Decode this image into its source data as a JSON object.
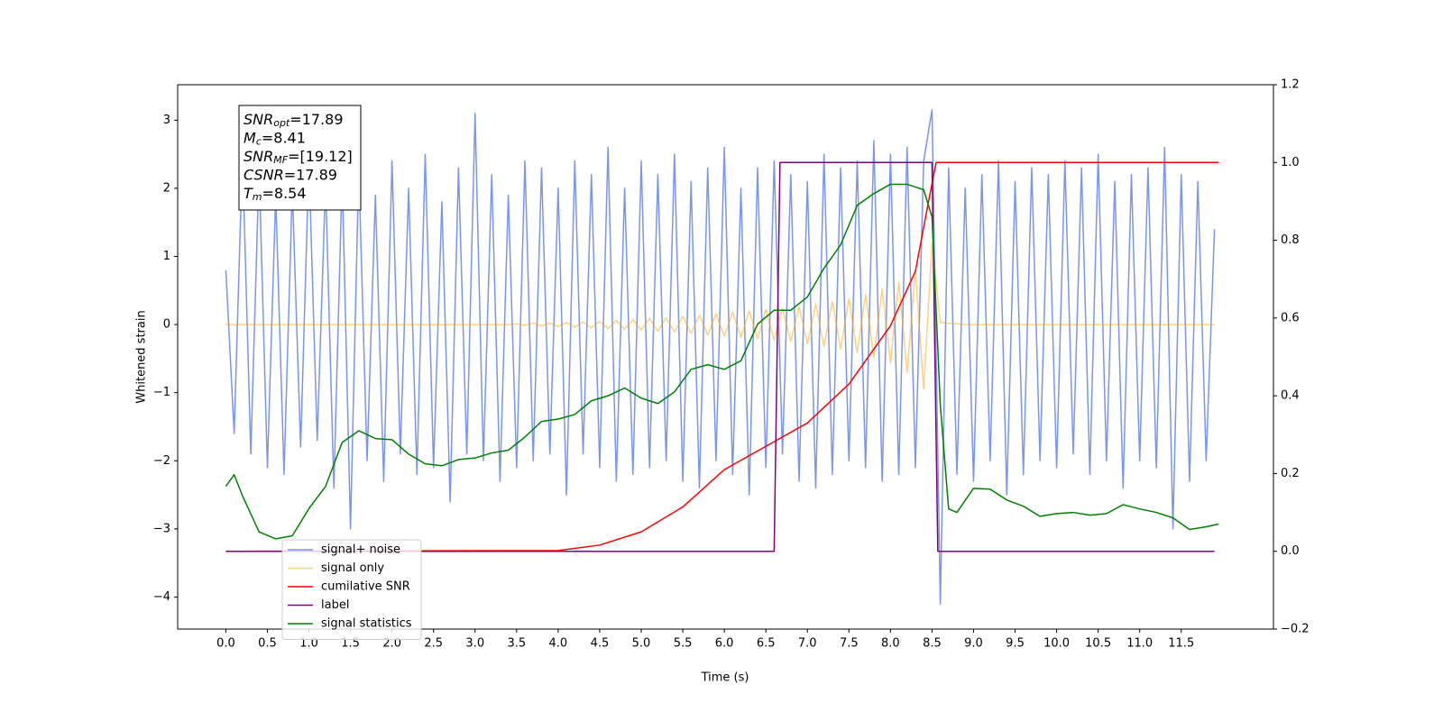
{
  "chart_data": {
    "type": "line",
    "xlabel": "Time (s)",
    "ylabel": "Whitened strain",
    "xlim": [
      -0.58,
      12.61
    ],
    "ylim": [
      -4.47,
      3.52
    ],
    "y2lim": [
      -0.2,
      1.2
    ],
    "xticks": [
      {
        "value": 0,
        "label": "0.0"
      },
      0.5,
      {
        "value": 1,
        "label": "1.0"
      },
      1.5,
      {
        "value": 2,
        "label": "2.0"
      },
      2.5,
      {
        "value": 3,
        "label": "3.0"
      },
      3.5,
      {
        "value": 4,
        "label": "4.0"
      },
      4.5,
      {
        "value": 5,
        "label": "5.0"
      },
      5.5,
      {
        "value": 6,
        "label": "6.0"
      },
      6.5,
      {
        "value": 7,
        "label": "7.0"
      },
      7.5,
      {
        "value": 8,
        "label": "8.0"
      },
      8.5,
      {
        "value": 9,
        "label": "9.0"
      },
      9.5,
      {
        "value": 10,
        "label": "10.0"
      },
      10.5,
      {
        "value": 11,
        "label": "11.0"
      },
      11.5
    ],
    "yticks": [
      {
        "value": -4,
        "label": "−4"
      },
      {
        "value": -3,
        "label": "−3"
      },
      {
        "value": -2,
        "label": "−2"
      },
      {
        "value": -1,
        "label": "−1"
      },
      0,
      1,
      2,
      3
    ],
    "y2ticks": [
      {
        "value": -0.2,
        "label": "−0.2"
      },
      {
        "value": 0,
        "label": "0.0"
      },
      0.2,
      0.4,
      0.6,
      0.8,
      {
        "value": 1,
        "label": "1.0"
      },
      1.2
    ],
    "legend": "lower left",
    "x": [
      0,
      0.1,
      0.2,
      0.3,
      0.4,
      0.5,
      0.6,
      0.7,
      0.8,
      0.9,
      1,
      1.1,
      1.2,
      1.3,
      1.4,
      1.5,
      1.6,
      1.7,
      1.8,
      1.9,
      2,
      2.1,
      2.2,
      2.3,
      2.4,
      2.5,
      2.6,
      2.7,
      2.8,
      2.9,
      3,
      3.1,
      3.2,
      3.3,
      3.4,
      3.5,
      3.6,
      3.7,
      3.8,
      3.9,
      4,
      4.1,
      4.2,
      4.3,
      4.4,
      4.5,
      4.6,
      4.7,
      4.8,
      4.9,
      5,
      5.1,
      5.2,
      5.3,
      5.4,
      5.5,
      5.6,
      5.7,
      5.8,
      5.9,
      6,
      6.1,
      6.2,
      6.3,
      6.4,
      6.5,
      6.6,
      6.7,
      6.8,
      6.9,
      7,
      7.1,
      7.2,
      7.3,
      7.4,
      7.5,
      7.6,
      7.7,
      7.8,
      7.9,
      8,
      8.1,
      8.2,
      8.3,
      8.4,
      8.5,
      8.6,
      8.7,
      8.8,
      8.9,
      9,
      9.1,
      9.2,
      9.3,
      9.4,
      9.5,
      9.6,
      9.7,
      9.8,
      9.9,
      10,
      10.1,
      10.2,
      10.3,
      10.4,
      10.5,
      10.6,
      10.7,
      10.8,
      10.9,
      11,
      11.1,
      11.2,
      11.3,
      11.4,
      11.5,
      11.6,
      11.7,
      11.8,
      11.9
    ],
    "series": [
      {
        "name": "signal+ noise",
        "color": "#4169e1",
        "alpha": 0.7,
        "values": [
          0.8,
          -1.6,
          2.5,
          -1.9,
          2.3,
          -2.1,
          1.9,
          -2.2,
          2.0,
          -1.8,
          2.4,
          -1.7,
          2.1,
          -2.4,
          2.2,
          -3.0,
          2.3,
          -2.0,
          1.9,
          -2.3,
          2.4,
          -1.9,
          2.0,
          -2.2,
          2.5,
          -2.1,
          1.8,
          -2.6,
          2.3,
          -1.9,
          3.1,
          -2.0,
          2.2,
          -2.3,
          1.9,
          -2.1,
          2.4,
          -2.0,
          2.3,
          -1.9,
          2.0,
          -2.5,
          2.4,
          -1.9,
          2.2,
          -2.1,
          2.6,
          -2.3,
          2.0,
          -2.2,
          2.4,
          -2.1,
          2.2,
          -2.0,
          2.5,
          -2.3,
          2.1,
          -2.4,
          2.3,
          -2.0,
          2.6,
          -2.2,
          2.0,
          -2.5,
          2.3,
          -2.1,
          2.4,
          -1.9,
          2.2,
          -2.3,
          2.1,
          -2.4,
          2.5,
          -2.2,
          2.3,
          -2.0,
          2.4,
          -2.1,
          2.7,
          -2.3,
          2.5,
          -2.2,
          2.6,
          -2.1,
          2.4,
          3.15,
          -4.1,
          2.3,
          -2.2,
          2.0,
          -2.3,
          2.2,
          -2.0,
          2.4,
          -2.5,
          2.1,
          -2.2,
          2.3,
          -2.0,
          2.2,
          -2.1,
          2.4,
          -1.9,
          2.3,
          -2.2,
          2.5,
          -2.0,
          2.1,
          -2.4,
          2.2,
          -2.0,
          2.3,
          -2.1,
          2.6,
          -3.0,
          2.2,
          -2.3,
          2.1,
          -2.0,
          1.4
        ]
      },
      {
        "name": "signal only",
        "color": "#ffa500",
        "alpha": 0.5,
        "values": [
          0,
          0,
          0,
          0,
          0,
          0,
          0,
          0,
          0,
          0,
          0,
          0,
          0,
          0,
          0,
          0,
          0,
          0,
          0,
          0,
          0,
          0,
          0,
          0,
          0,
          0,
          0,
          0,
          0,
          0,
          0,
          0,
          0,
          0,
          0,
          0.01,
          -0.01,
          0.02,
          -0.02,
          0.02,
          -0.03,
          0.03,
          -0.04,
          0.04,
          -0.05,
          0.05,
          -0.06,
          0.06,
          -0.07,
          0.07,
          -0.08,
          0.09,
          -0.1,
          0.1,
          -0.11,
          0.12,
          -0.13,
          0.14,
          -0.15,
          0.16,
          -0.17,
          0.18,
          -0.19,
          0.2,
          -0.21,
          0.22,
          -0.23,
          0.24,
          -0.25,
          0.26,
          -0.28,
          0.3,
          -0.32,
          0.34,
          -0.36,
          0.38,
          -0.41,
          0.44,
          -0.48,
          0.52,
          -0.56,
          0.62,
          -0.7,
          0.8,
          -0.95,
          1.2,
          0.03,
          0.02,
          0.01,
          0,
          0,
          0,
          0,
          0,
          0,
          0,
          0,
          0,
          0,
          0,
          0,
          0,
          0,
          0,
          0,
          0,
          0,
          0,
          0,
          0,
          0,
          0,
          0,
          0,
          0,
          0,
          0,
          0,
          0,
          0
        ]
      },
      {
        "name": "cumilative SNR",
        "color": "#ff0000",
        "axis": "y2",
        "x": [
          0,
          4.0,
          4.5,
          5.0,
          5.5,
          6.0,
          6.5,
          7.0,
          7.5,
          8.0,
          8.3,
          8.45,
          8.55,
          11.95
        ],
        "values": [
          0,
          0.002,
          0.016,
          0.05,
          0.114,
          0.21,
          0.27,
          0.33,
          0.43,
          0.58,
          0.72,
          0.89,
          1.0,
          1.0
        ]
      },
      {
        "name": "label",
        "color": "#800080",
        "axis": "y2",
        "x": [
          0,
          6.6,
          6.67,
          8.5,
          8.57,
          11.9
        ],
        "values": [
          0,
          0,
          1,
          1,
          0,
          0
        ]
      },
      {
        "name": "signal statistics",
        "color": "#008000",
        "axis": "y2",
        "x": [
          0,
          0.1,
          0.2,
          0.4,
          0.6,
          0.8,
          1.0,
          1.2,
          1.4,
          1.6,
          1.8,
          2.0,
          2.2,
          2.4,
          2.6,
          2.8,
          3.0,
          3.2,
          3.4,
          3.6,
          3.8,
          4.0,
          4.2,
          4.4,
          4.6,
          4.8,
          5.0,
          5.2,
          5.4,
          5.6,
          5.8,
          6.0,
          6.2,
          6.4,
          6.6,
          6.8,
          7.0,
          7.2,
          7.4,
          7.6,
          7.8,
          8.0,
          8.2,
          8.4,
          8.5,
          8.6,
          8.7,
          8.8,
          9.0,
          9.2,
          9.4,
          9.6,
          9.8,
          10.0,
          10.2,
          10.4,
          10.6,
          10.8,
          11.0,
          11.2,
          11.4,
          11.6,
          11.8,
          11.95
        ],
        "values": [
          0.167,
          0.197,
          0.143,
          0.05,
          0.032,
          0.04,
          0.11,
          0.167,
          0.28,
          0.31,
          0.29,
          0.287,
          0.25,
          0.225,
          0.22,
          0.236,
          0.24,
          0.253,
          0.26,
          0.294,
          0.334,
          0.34,
          0.352,
          0.387,
          0.4,
          0.42,
          0.394,
          0.38,
          0.41,
          0.468,
          0.48,
          0.468,
          0.49,
          0.584,
          0.62,
          0.62,
          0.654,
          0.728,
          0.788,
          0.89,
          0.92,
          0.944,
          0.944,
          0.93,
          0.86,
          0.376,
          0.109,
          0.1,
          0.162,
          0.16,
          0.132,
          0.116,
          0.09,
          0.097,
          0.1,
          0.093,
          0.097,
          0.12,
          0.109,
          0.1,
          0.086,
          0.056,
          0.063,
          0.07
        ]
      }
    ],
    "annotation": {
      "lines": [
        {
          "name": "SNR",
          "sub": "opt",
          "text": "=17.89"
        },
        {
          "name": "M",
          "sub": "c",
          "text": "=8.41"
        },
        {
          "name": "SNR",
          "sub": "MF",
          "text": "=[19.12]"
        },
        {
          "name": "CSNR",
          "sub": "",
          "text": "=17.89"
        },
        {
          "name": "T",
          "sub": "m",
          "text": "=8.54"
        }
      ]
    }
  }
}
